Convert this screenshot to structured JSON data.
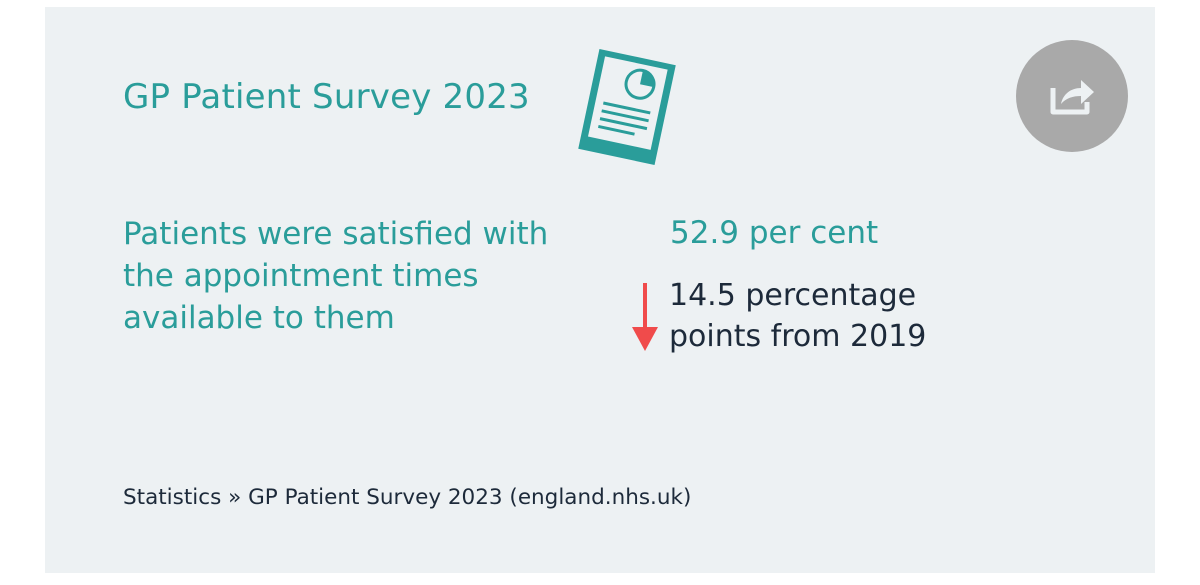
{
  "card": {
    "title": "GP Patient Survey 2023",
    "stat": {
      "description": "Patients were satisfied with the appointment times available to them",
      "value": "52.9 per cent",
      "change_text": "14.5 percentage points from 2019",
      "change_direction": "down"
    },
    "source": "Statistics » GP Patient Survey 2023 (england.nhs.uk)"
  },
  "icons": {
    "report": "report-document-icon",
    "share": "share-icon",
    "change": "arrow-down-icon"
  },
  "colors": {
    "teal": "#2a9d9a",
    "dark_text": "#1d2a3a",
    "arrow_red": "#f04b4b",
    "card_bg": "#edf1f3",
    "share_bg": "#a9a9a9"
  }
}
